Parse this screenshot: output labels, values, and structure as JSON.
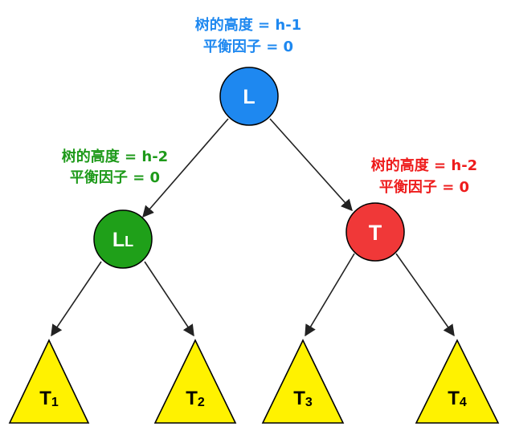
{
  "nodes": {
    "root": {
      "text": "L",
      "color": "#1E88F0",
      "height_label": "树的高度 = h-1",
      "balance_label": "平衡因子 = 0",
      "label_color": "#1E88F0"
    },
    "left": {
      "text": "L",
      "sub": "L",
      "color": "#1FA019",
      "height_label": "树的高度 = h-2",
      "balance_label": "平衡因子 = 0",
      "label_color": "#1E9A1A"
    },
    "right": {
      "text": "T",
      "color": "#F03838",
      "height_label": "树的高度 = h-2",
      "balance_label": "平衡因子 = 0",
      "label_color": "#EE1C1C"
    }
  },
  "subtrees": [
    {
      "main": "T",
      "sub": "1"
    },
    {
      "main": "T",
      "sub": "2"
    },
    {
      "main": "T",
      "sub": "3"
    },
    {
      "main": "T",
      "sub": "4"
    }
  ],
  "colors": {
    "triangle_fill": "#FFF200",
    "stroke": "#000000",
    "edge": "#222222"
  }
}
